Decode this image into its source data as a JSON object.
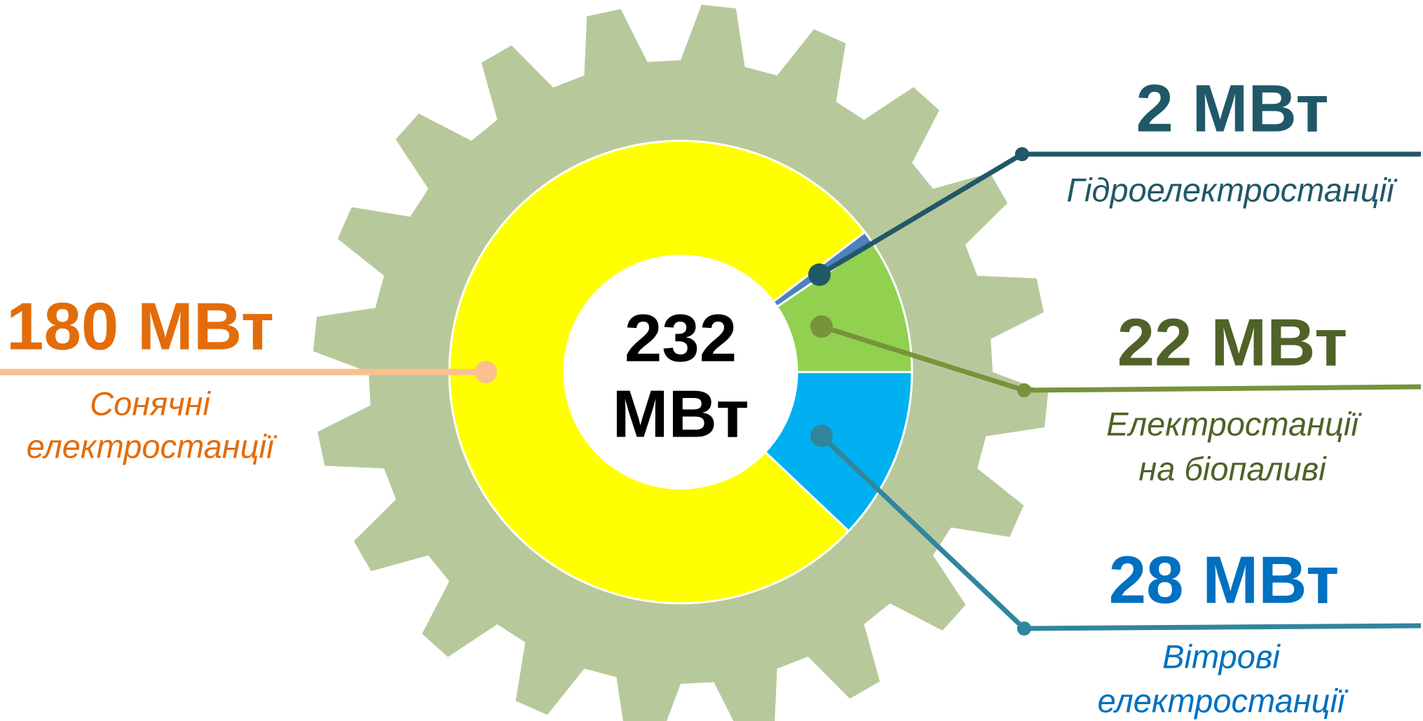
{
  "chart_data": {
    "type": "donut",
    "categories": [
      [
        "Вітрові",
        "електростанції"
      ],
      [
        "Сонячні",
        "електростанції"
      ],
      [
        "Гідроелектростанції"
      ],
      [
        "Електростанції",
        "на біопаливі"
      ]
    ],
    "values": [
      28,
      180,
      2,
      22
    ],
    "value_labels": [
      "28 МВт",
      "180 МВт",
      "2 МВт",
      "22 МВт"
    ],
    "colors": [
      "#00b0f0",
      "#ffff00",
      "#4f81bd",
      "#92d050"
    ],
    "label_colors": [
      "#0070c0",
      "#e36c0a",
      "#215868",
      "#4f6228"
    ],
    "line_colors": [
      "#31859c",
      "#fac090",
      "#215868",
      "#77933c"
    ],
    "center_label": [
      "232",
      "МВт"
    ]
  }
}
